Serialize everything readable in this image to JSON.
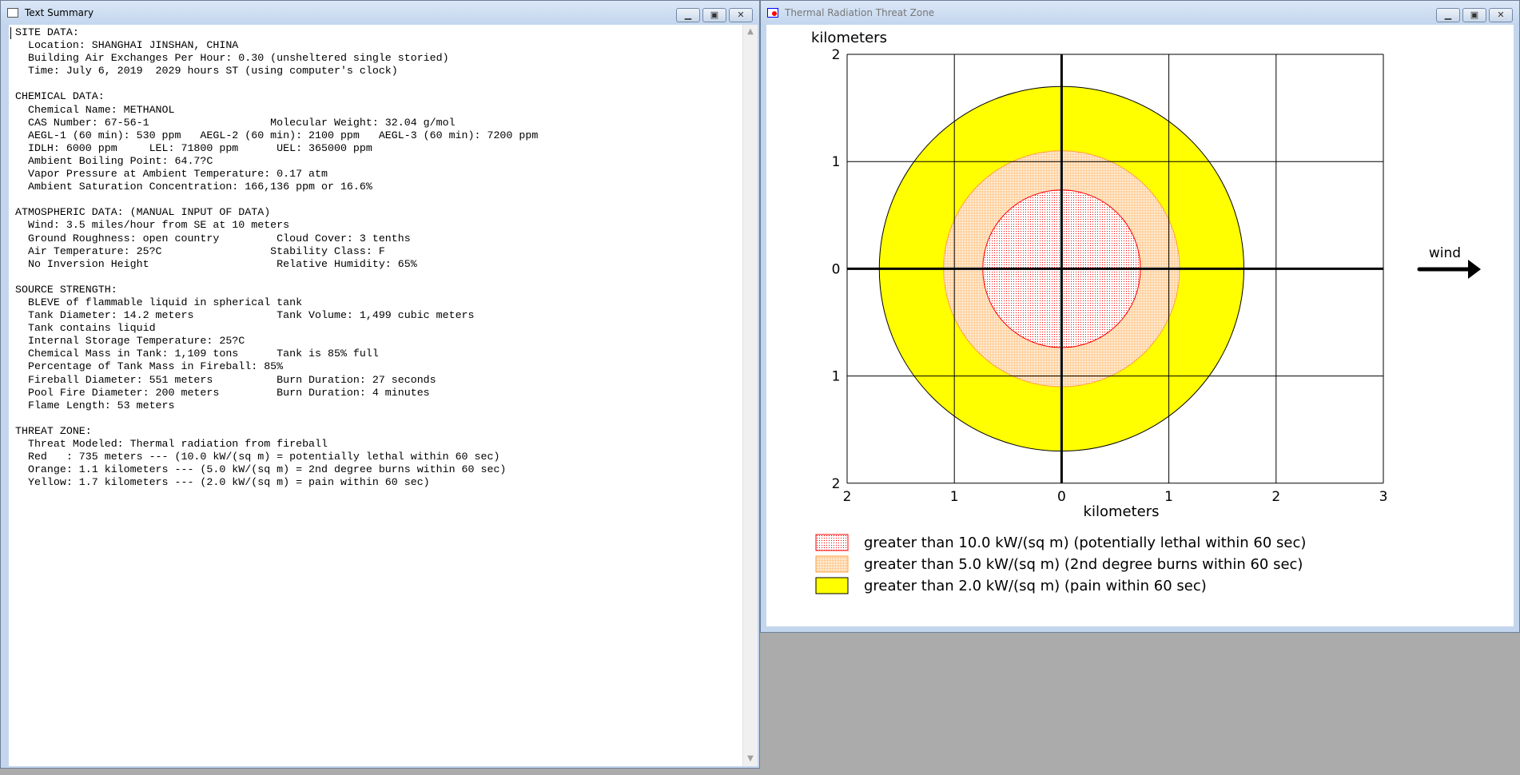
{
  "summary_window": {
    "title": "Text Summary",
    "icon": "document-icon",
    "buttons": {
      "minimize": "minimize-icon",
      "maximize": "maximize-icon",
      "close": "close-icon"
    },
    "lines": [
      "SITE DATA:",
      "  Location: SHANGHAI JINSHAN, CHINA",
      "  Building Air Exchanges Per Hour: 0.30 (unsheltered single storied)",
      "  Time: July 6, 2019  2029 hours ST (using computer's clock)",
      "",
      "CHEMICAL DATA:",
      "  Chemical Name: METHANOL",
      "  CAS Number: 67-56-1                   Molecular Weight: 32.04 g/mol",
      "  AEGL-1 (60 min): 530 ppm   AEGL-2 (60 min): 2100 ppm   AEGL-3 (60 min): 7200 ppm",
      "  IDLH: 6000 ppm     LEL: 71800 ppm      UEL: 365000 ppm",
      "  Ambient Boiling Point: 64.7?C",
      "  Vapor Pressure at Ambient Temperature: 0.17 atm",
      "  Ambient Saturation Concentration: 166,136 ppm or 16.6%",
      "",
      "ATMOSPHERIC DATA: (MANUAL INPUT OF DATA)",
      "  Wind: 3.5 miles/hour from SE at 10 meters",
      "  Ground Roughness: open country         Cloud Cover: 3 tenths",
      "  Air Temperature: 25?C                 Stability Class: F",
      "  No Inversion Height                    Relative Humidity: 65%",
      "",
      "SOURCE STRENGTH:",
      "  BLEVE of flammable liquid in spherical tank",
      "  Tank Diameter: 14.2 meters             Tank Volume: 1,499 cubic meters",
      "  Tank contains liquid",
      "  Internal Storage Temperature: 25?C",
      "  Chemical Mass in Tank: 1,109 tons      Tank is 85% full",
      "  Percentage of Tank Mass in Fireball: 85%",
      "  Fireball Diameter: 551 meters          Burn Duration: 27 seconds",
      "  Pool Fire Diameter: 200 meters         Burn Duration: 4 minutes",
      "  Flame Length: 53 meters",
      "",
      "THREAT ZONE:",
      "  Threat Modeled: Thermal radiation from fireball",
      "  Red   : 735 meters --- (10.0 kW/(sq m) = potentially lethal within 60 sec)",
      "  Orange: 1.1 kilometers --- (5.0 kW/(sq m) = 2nd degree burns within 60 sec)",
      "  Yellow: 1.7 kilometers --- (2.0 kW/(sq m) = pain within 60 sec)"
    ]
  },
  "threat_window": {
    "title": "Thermal Radiation Threat Zone",
    "icon": "chart-icon",
    "buttons": {
      "minimize": "minimize-icon",
      "maximize": "maximize-icon",
      "close": "close-icon"
    }
  },
  "chart_data": {
    "type": "area",
    "xlabel": "kilometers",
    "ylabel": "kilometers",
    "xlim": [
      -2,
      3
    ],
    "ylim": [
      -2,
      2
    ],
    "x_ticks": [
      -2,
      -1,
      0,
      1,
      2,
      3
    ],
    "x_tick_labels": [
      "2",
      "1",
      "0",
      "1",
      "2",
      "3"
    ],
    "y_ticks": [
      2,
      1,
      0,
      -1,
      -2
    ],
    "y_tick_labels": [
      "2",
      "1",
      "0",
      "1",
      "2"
    ],
    "grid": true,
    "wind_label": "wind",
    "wind_direction": "right",
    "legend_placement": "bottom",
    "zones": [
      {
        "name": "greater than 2.0 kW/(sq m) (pain within 60 sec)",
        "radius_km": 1.7,
        "color": "#ffff00",
        "stroke": "#000000",
        "pattern": "solid"
      },
      {
        "name": "greater than 5.0 kW/(sq m) (2nd degree burns within 60 sec)",
        "radius_km": 1.1,
        "color": "#ffa040",
        "stroke": "#ffa040",
        "pattern": "dots"
      },
      {
        "name": "greater than 10.0 kW/(sq m) (potentially lethal within 60 sec)",
        "radius_km": 0.735,
        "color": "#ff0000",
        "stroke": "#ff0000",
        "pattern": "dots"
      }
    ],
    "legend": [
      "greater than 10.0 kW/(sq m) (potentially lethal within 60 sec)",
      "greater than 5.0 kW/(sq m) (2nd degree burns within 60 sec)",
      "greater than 2.0 kW/(sq m) (pain within 60 sec)"
    ]
  }
}
